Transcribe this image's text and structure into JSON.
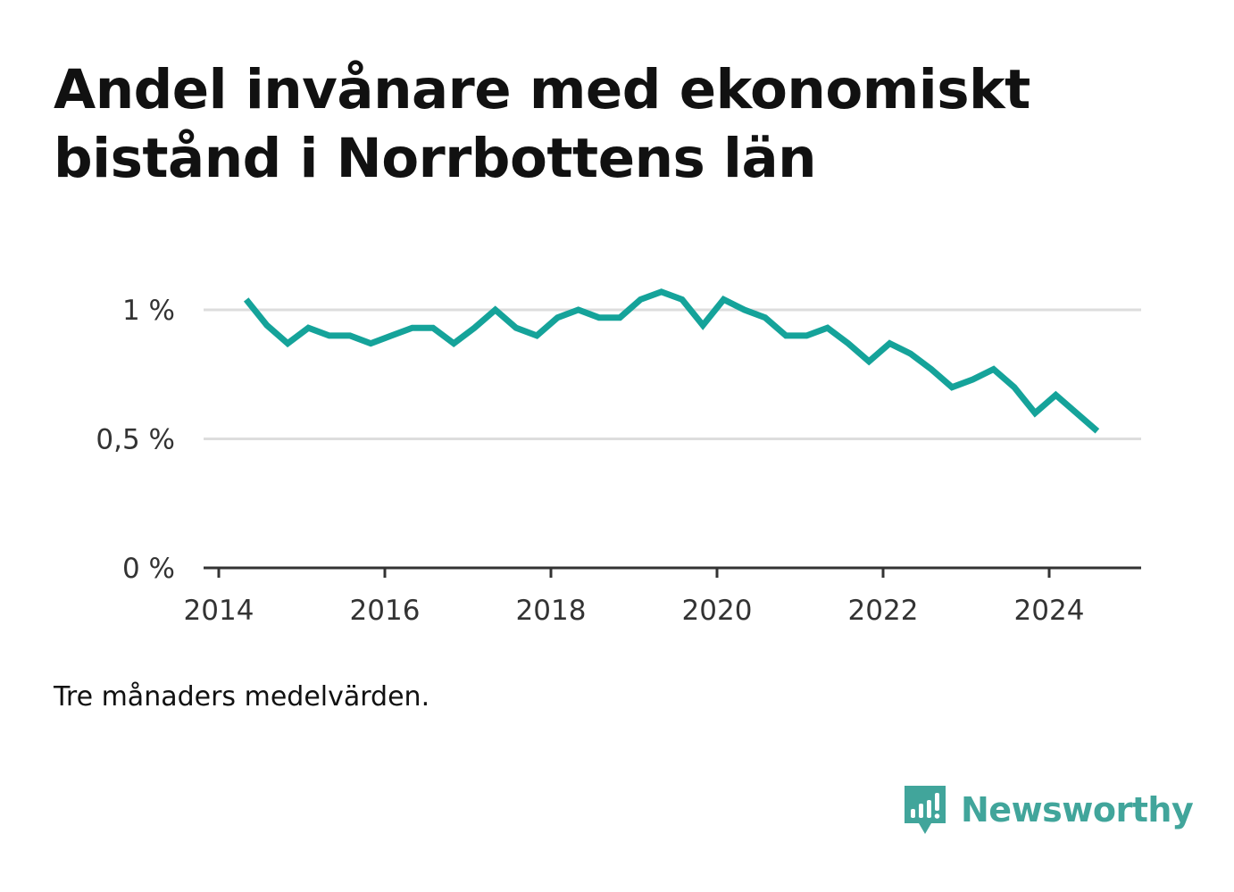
{
  "title": "Andel invånare med ekonomiskt bistånd i Norrbottens län",
  "note": "Tre månaders medelvärden.",
  "brand": {
    "name": "Newsworthy",
    "icon": "bar-chart-speech-bubble-icon",
    "color": "#41a59b"
  },
  "colors": {
    "line": "#15a39a",
    "grid": "#dddddd",
    "axis": "#333333",
    "text": "#333333"
  },
  "chart_data": {
    "type": "line",
    "title": "Andel invånare med ekonomiskt bistånd i Norrbottens län",
    "xlabel": "",
    "ylabel": "",
    "xlim": [
      2014,
      2025.1
    ],
    "ylim": [
      0,
      1.0
    ],
    "y_ticks": [
      {
        "value": 0,
        "label": "0 %"
      },
      {
        "value": 0.5,
        "label": "0,5 %"
      },
      {
        "value": 1,
        "label": "1 %"
      }
    ],
    "x_ticks": [
      {
        "value": 2014,
        "label": "2014"
      },
      {
        "value": 2016,
        "label": "2016"
      },
      {
        "value": 2018,
        "label": "2018"
      },
      {
        "value": 2020,
        "label": "2020"
      },
      {
        "value": 2022,
        "label": "2022"
      },
      {
        "value": 2024,
        "label": "2024"
      }
    ],
    "grid": true,
    "series": [
      {
        "x": [
          2014.33,
          2014.58,
          2014.83,
          2015.08,
          2015.33,
          2015.58,
          2015.83,
          2016.08,
          2016.33,
          2016.58,
          2016.83,
          2017.08,
          2017.33,
          2017.58,
          2017.83,
          2018.08,
          2018.33,
          2018.58,
          2018.83,
          2019.08,
          2019.33,
          2019.58,
          2019.83,
          2020.08,
          2020.33,
          2020.58,
          2020.83,
          2021.08,
          2021.33,
          2021.58,
          2021.83,
          2022.08,
          2022.33,
          2022.58,
          2022.83,
          2023.08,
          2023.33,
          2023.58,
          2023.83,
          2024.08,
          2024.33,
          2024.58
        ],
        "y": [
          1.04,
          0.94,
          0.87,
          0.93,
          0.9,
          0.9,
          0.87,
          0.9,
          0.93,
          0.93,
          0.87,
          0.93,
          1.0,
          0.93,
          0.9,
          0.97,
          1.0,
          0.97,
          0.97,
          1.04,
          1.07,
          1.04,
          0.94,
          1.04,
          1.0,
          0.97,
          0.9,
          0.9,
          0.93,
          0.87,
          0.8,
          0.87,
          0.83,
          0.77,
          0.7,
          0.73,
          0.77,
          0.7,
          0.6,
          0.67,
          0.6,
          0.53
        ]
      }
    ]
  }
}
